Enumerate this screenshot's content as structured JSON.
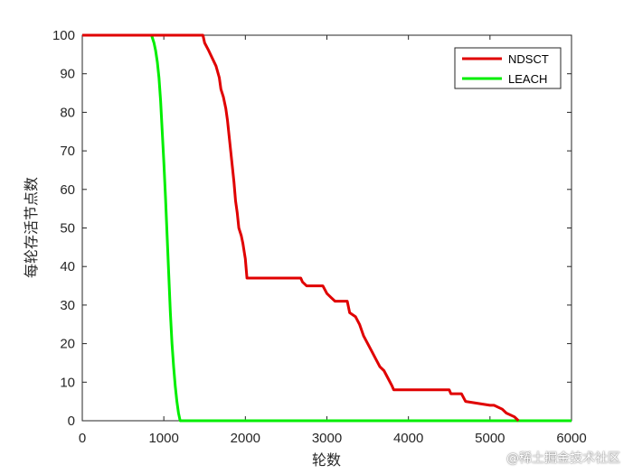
{
  "chart_data": {
    "type": "line",
    "xlabel": "轮数",
    "ylabel": "每轮存活节点数",
    "xlim": [
      0,
      6000
    ],
    "ylim": [
      0,
      100
    ],
    "xticks": [
      0,
      1000,
      2000,
      3000,
      4000,
      5000,
      6000
    ],
    "yticks": [
      0,
      10,
      20,
      30,
      40,
      50,
      60,
      70,
      80,
      90,
      100
    ],
    "grid": false,
    "legend_position": "top-right",
    "series": [
      {
        "name": "NDSCT",
        "color": "#e00000",
        "x": [
          0,
          1480,
          1500,
          1550,
          1640,
          1680,
          1700,
          1730,
          1760,
          1780,
          1800,
          1820,
          1840,
          1860,
          1880,
          1900,
          1920,
          1950,
          1970,
          2000,
          2020,
          2100,
          2400,
          2680,
          2700,
          2750,
          2950,
          3000,
          3050,
          3100,
          3250,
          3280,
          3350,
          3400,
          3450,
          3500,
          3550,
          3600,
          3650,
          3700,
          3750,
          3800,
          3820,
          4500,
          4520,
          4650,
          4700,
          5000,
          5050,
          5150,
          5200,
          5300,
          5350
        ],
        "y": [
          100,
          100,
          98,
          96,
          92,
          89,
          86,
          84,
          81,
          78,
          74,
          70,
          66,
          62,
          57,
          54,
          50,
          48,
          46,
          42,
          37,
          37,
          37,
          37,
          36,
          35,
          35,
          33,
          32,
          31,
          31,
          28,
          27,
          25,
          22,
          20,
          18,
          16,
          14,
          13,
          11,
          9,
          8,
          8,
          7,
          7,
          5,
          4,
          4,
          3,
          2,
          1,
          0
        ]
      },
      {
        "name": "LEACH",
        "color": "#00ee00",
        "x": [
          0,
          850,
          880,
          900,
          920,
          940,
          960,
          980,
          1000,
          1020,
          1040,
          1060,
          1080,
          1100,
          1120,
          1140,
          1160,
          1180,
          1200,
          6000
        ],
        "y": [
          100,
          100,
          98,
          96,
          93,
          89,
          83,
          75,
          67,
          58,
          48,
          38,
          28,
          20,
          14,
          9,
          5,
          2,
          0,
          0
        ]
      }
    ]
  },
  "watermark": "@稀土掘金技术社区"
}
